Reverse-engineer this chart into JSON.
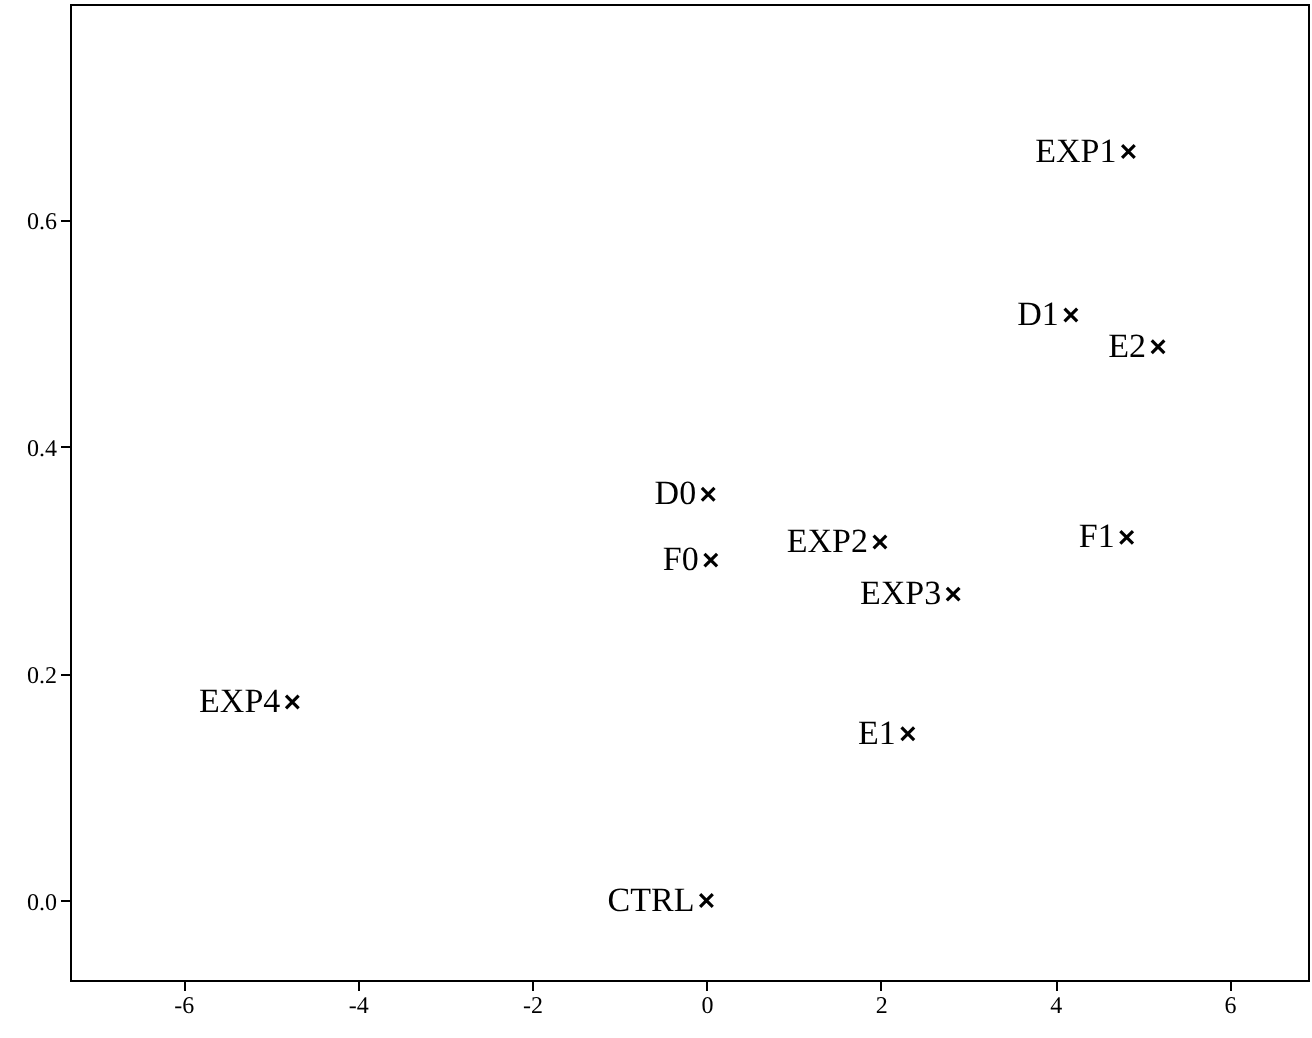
{
  "chart_data": {
    "type": "scatter",
    "marker": "cross",
    "series": [
      {
        "color": "#000000",
        "x": [
          4.84,
          4.18,
          5.18,
          4.82,
          0.02,
          0.05,
          1.99,
          2.83,
          2.31,
          -4.75,
          0.0
        ],
        "values": [
          0.66,
          0.516,
          0.488,
          0.32,
          0.358,
          0.3,
          0.316,
          0.27,
          0.147,
          0.175,
          0.0
        ]
      }
    ],
    "annotations": [
      {
        "text": "EXP1",
        "x": 4.84,
        "y": 0.66
      },
      {
        "text": "D1",
        "x": 4.18,
        "y": 0.516
      },
      {
        "text": "E2",
        "x": 5.18,
        "y": 0.488
      },
      {
        "text": "F1",
        "x": 4.82,
        "y": 0.32
      },
      {
        "text": "D0",
        "x": 0.02,
        "y": 0.358
      },
      {
        "text": "F0",
        "x": 0.05,
        "y": 0.3
      },
      {
        "text": "EXP2",
        "x": 1.99,
        "y": 0.316
      },
      {
        "text": "EXP3",
        "x": 2.83,
        "y": 0.27
      },
      {
        "text": "E1",
        "x": 2.31,
        "y": 0.147
      },
      {
        "text": "EXP4",
        "x": -4.75,
        "y": 0.175
      },
      {
        "text": "CTRL",
        "x": 0.0,
        "y": 0.0
      }
    ],
    "xlim": [
      -7.3,
      6.9
    ],
    "xticks": [
      -6,
      -4,
      -2,
      0,
      2,
      4,
      6
    ],
    "ylim": [
      -0.07,
      0.79
    ],
    "yticks": [
      {
        "value": 0.0,
        "label": "0.0"
      },
      {
        "value": 0.2,
        "label": "0.2"
      },
      {
        "value": 0.4,
        "label": "0.4"
      },
      {
        "value": 0.6,
        "label": "0.6"
      }
    ]
  }
}
